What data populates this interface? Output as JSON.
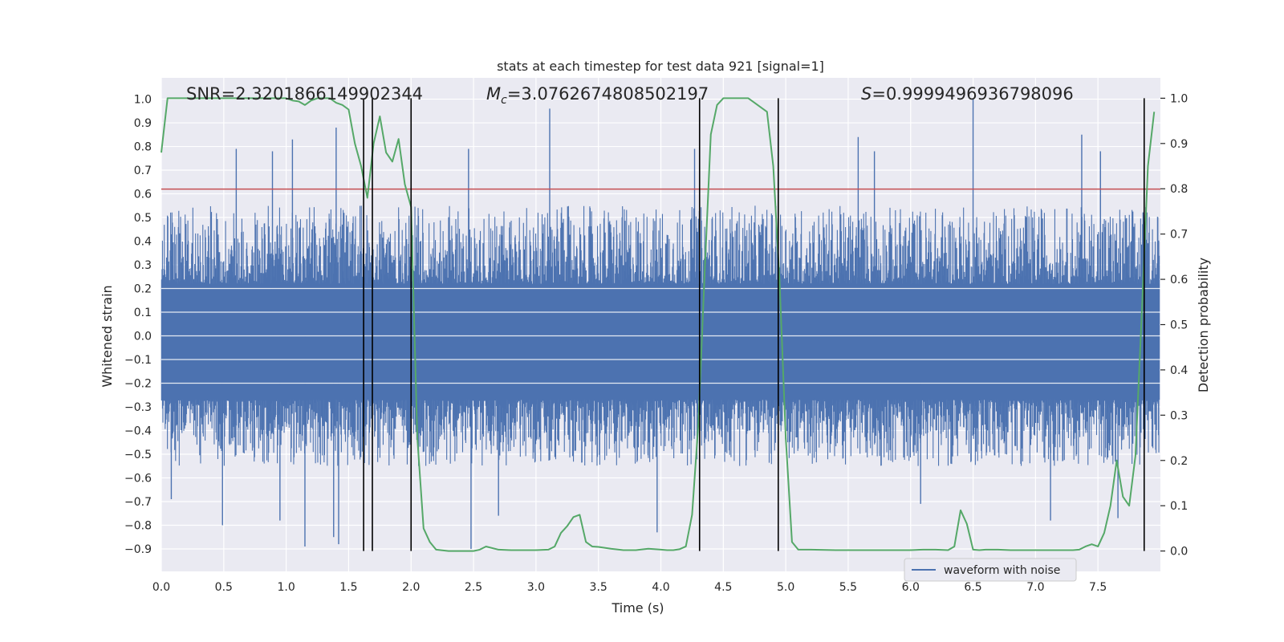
{
  "chart_data": {
    "type": "line",
    "title": "stats at each timestep for test data 921 [signal=1]",
    "xlabel": "Time (s)",
    "ylabel_left": "Whitened strain",
    "ylabel_right": "Detection probability",
    "xlim": [
      0.0,
      8.0
    ],
    "ylim_left": [
      -0.995,
      1.09
    ],
    "ylim_right": [
      -0.045,
      1.045
    ],
    "x_ticks": [
      "0.0",
      "0.5",
      "1.0",
      "1.5",
      "2.0",
      "2.5",
      "3.0",
      "3.5",
      "4.0",
      "4.5",
      "5.0",
      "5.5",
      "6.0",
      "6.5",
      "7.0",
      "7.5"
    ],
    "y_left_ticks": [
      "−0.9",
      "−0.8",
      "−0.7",
      "−0.6",
      "−0.5",
      "−0.4",
      "−0.3",
      "−0.2",
      "−0.1",
      "0.0",
      "0.1",
      "0.2",
      "0.3",
      "0.4",
      "0.5",
      "0.6",
      "0.7",
      "0.8",
      "0.9",
      "1.0"
    ],
    "y_right_ticks": [
      "0.0",
      "0.1",
      "0.2",
      "0.3",
      "0.4",
      "0.5",
      "0.6",
      "0.7",
      "0.8",
      "0.9",
      "1.0"
    ],
    "annotations": {
      "snr": "SNR=2.3201866149902344",
      "mc_symbol": "M",
      "mc_sub": "c",
      "mc_value": "=3.0762674808502197",
      "s_symbol": "S",
      "s_value": "=0.9999496936798096"
    },
    "threshold_line": {
      "y": 0.62,
      "color": "#c44e52"
    },
    "vertical_lines": [
      1.62,
      1.69,
      2.0,
      4.31,
      4.94,
      7.87
    ],
    "waveform": {
      "name": "waveform with noise",
      "color": "#4c72b0",
      "envelope_core": [
        -0.27,
        0.22
      ],
      "samples": 2200,
      "typical_max": 0.45,
      "typical_min": -0.45
    },
    "waveform_peaks": [
      {
        "x": 1.4,
        "y": 0.88
      },
      {
        "x": 1.05,
        "y": 0.83
      },
      {
        "x": 3.11,
        "y": 0.96
      },
      {
        "x": 6.5,
        "y": 1.0
      },
      {
        "x": 5.58,
        "y": 0.84
      },
      {
        "x": 7.37,
        "y": 0.85
      },
      {
        "x": 0.6,
        "y": 0.79
      },
      {
        "x": 0.89,
        "y": 0.78
      },
      {
        "x": 2.46,
        "y": 0.79
      },
      {
        "x": 4.27,
        "y": 0.79
      },
      {
        "x": 5.71,
        "y": 0.78
      },
      {
        "x": 7.52,
        "y": 0.78
      },
      {
        "x": 1.15,
        "y": -0.89
      },
      {
        "x": 2.48,
        "y": -0.9
      },
      {
        "x": 1.42,
        "y": -0.88
      },
      {
        "x": 1.38,
        "y": -0.85
      },
      {
        "x": 3.97,
        "y": -0.83
      },
      {
        "x": 0.49,
        "y": -0.8
      },
      {
        "x": 0.95,
        "y": -0.78
      },
      {
        "x": 7.12,
        "y": -0.78
      },
      {
        "x": 7.66,
        "y": -0.77
      },
      {
        "x": 6.08,
        "y": -0.71
      },
      {
        "x": 2.7,
        "y": -0.76
      },
      {
        "x": 0.08,
        "y": -0.69
      }
    ],
    "detection_probability": {
      "name": "detection probability",
      "color": "#55a868",
      "x": [
        0.0,
        0.05,
        0.1,
        0.2,
        0.3,
        0.4,
        0.5,
        0.6,
        0.7,
        0.8,
        0.9,
        1.0,
        1.05,
        1.1,
        1.15,
        1.2,
        1.25,
        1.3,
        1.35,
        1.4,
        1.45,
        1.5,
        1.55,
        1.6,
        1.65,
        1.7,
        1.75,
        1.8,
        1.85,
        1.9,
        1.95,
        2.0,
        2.05,
        2.1,
        2.15,
        2.2,
        2.3,
        2.4,
        2.5,
        2.55,
        2.6,
        2.7,
        2.8,
        2.9,
        3.0,
        3.1,
        3.15,
        3.2,
        3.25,
        3.3,
        3.35,
        3.4,
        3.45,
        3.5,
        3.6,
        3.7,
        3.8,
        3.9,
        4.0,
        4.05,
        4.1,
        4.15,
        4.2,
        4.25,
        4.3,
        4.35,
        4.4,
        4.45,
        4.5,
        4.6,
        4.7,
        4.8,
        4.85,
        4.9,
        4.95,
        5.0,
        5.05,
        5.1,
        5.2,
        5.4,
        5.6,
        5.8,
        6.0,
        6.1,
        6.2,
        6.3,
        6.35,
        6.4,
        6.45,
        6.5,
        6.55,
        6.6,
        6.7,
        6.8,
        7.0,
        7.2,
        7.3,
        7.35,
        7.4,
        7.45,
        7.5,
        7.55,
        7.6,
        7.65,
        7.7,
        7.75,
        7.8,
        7.85,
        7.9,
        7.95
      ],
      "y": [
        0.88,
        1.0,
        1.0,
        1.0,
        1.0,
        1.0,
        1.0,
        1.0,
        1.0,
        1.0,
        1.0,
        1.0,
        0.995,
        0.993,
        0.985,
        0.995,
        1.0,
        1.0,
        1.0,
        0.99,
        0.985,
        0.975,
        0.9,
        0.85,
        0.78,
        0.9,
        0.96,
        0.88,
        0.86,
        0.91,
        0.81,
        0.76,
        0.25,
        0.05,
        0.02,
        0.003,
        0.0,
        0.0,
        0.0,
        0.003,
        0.01,
        0.003,
        0.002,
        0.002,
        0.002,
        0.003,
        0.01,
        0.04,
        0.055,
        0.075,
        0.08,
        0.02,
        0.01,
        0.009,
        0.005,
        0.002,
        0.002,
        0.005,
        0.003,
        0.002,
        0.002,
        0.004,
        0.01,
        0.08,
        0.28,
        0.61,
        0.92,
        0.985,
        1.0,
        1.0,
        1.0,
        0.98,
        0.97,
        0.85,
        0.6,
        0.25,
        0.02,
        0.003,
        0.003,
        0.002,
        0.002,
        0.002,
        0.002,
        0.003,
        0.003,
        0.002,
        0.01,
        0.09,
        0.06,
        0.003,
        0.002,
        0.003,
        0.003,
        0.002,
        0.002,
        0.002,
        0.002,
        0.003,
        0.01,
        0.015,
        0.01,
        0.04,
        0.1,
        0.2,
        0.12,
        0.1,
        0.21,
        0.52,
        0.85,
        0.97
      ]
    },
    "legend": {
      "entries": [
        "waveform with noise"
      ],
      "placement": "bottom-right"
    }
  }
}
